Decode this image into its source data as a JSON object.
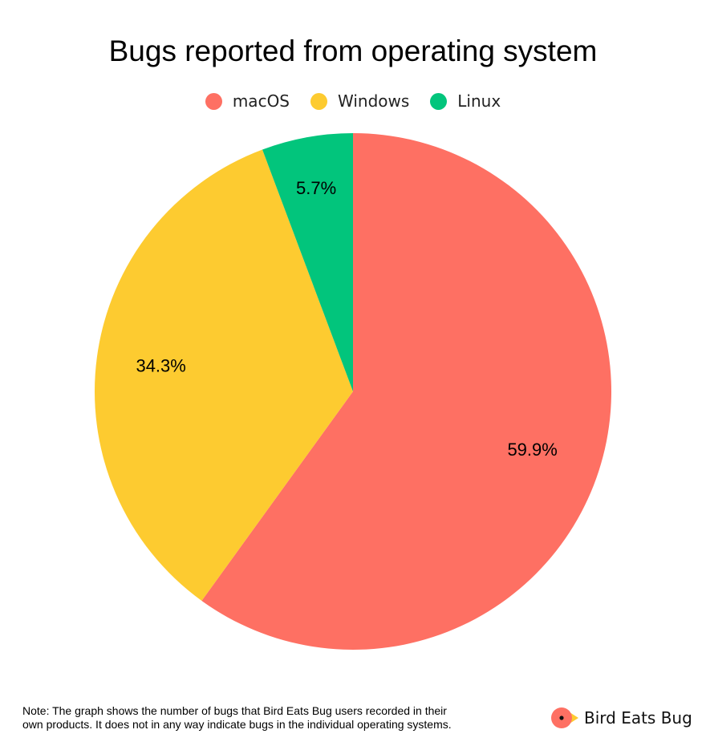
{
  "chart_data": {
    "type": "pie",
    "title": "Bugs reported from operating system",
    "categories": [
      "macOS",
      "Windows",
      "Linux"
    ],
    "values": [
      59.9,
      34.3,
      5.7
    ],
    "data_labels": [
      "59.9%",
      "34.3%",
      "5.7%"
    ],
    "colors": [
      "#fe7063",
      "#fdcb30",
      "#02c57c"
    ],
    "legend_position": "top-center",
    "start_angle": "12 o'clock",
    "direction": "clockwise"
  },
  "footnote": {
    "line1": "Note: The graph shows the number of bugs that Bird Eats Bug users recorded in their",
    "line2": "own products. It does not in any way indicate bugs in the individual operating systems."
  },
  "brand": {
    "name": "Bird Eats Bug",
    "logo_icon": "bird-logo-icon"
  }
}
